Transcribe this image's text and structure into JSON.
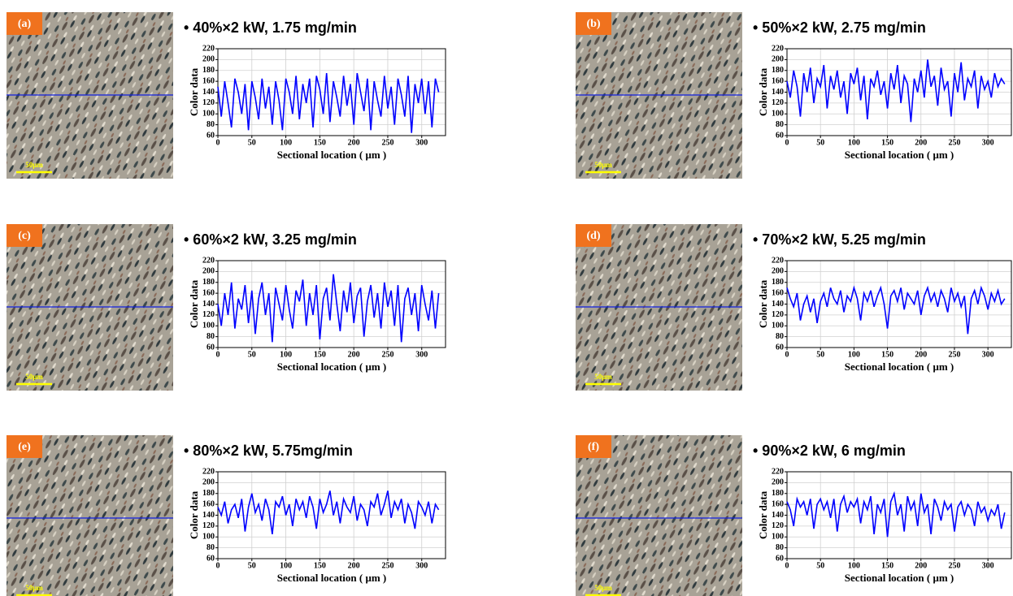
{
  "chart_data": [
    {
      "type": "line",
      "panel_label": "(a)",
      "scale_label": "50μm",
      "title": "• 40%×2 kW, 1.75 mg/min",
      "xlabel": "Sectional location ( μm )",
      "ylabel": "Color data",
      "color": "#0000ff",
      "grid": true,
      "xlim": [
        0,
        335
      ],
      "ylim": [
        60,
        220
      ],
      "xticks": [
        0,
        50,
        100,
        150,
        200,
        250,
        300
      ],
      "yticks": [
        60,
        80,
        100,
        120,
        140,
        160,
        180,
        200,
        220
      ],
      "x": [
        0,
        5,
        10,
        15,
        20,
        25,
        30,
        35,
        40,
        45,
        50,
        55,
        60,
        65,
        70,
        75,
        80,
        85,
        90,
        95,
        100,
        105,
        110,
        115,
        120,
        125,
        130,
        135,
        140,
        145,
        150,
        155,
        160,
        165,
        170,
        175,
        180,
        185,
        190,
        195,
        200,
        205,
        210,
        215,
        220,
        225,
        230,
        235,
        240,
        245,
        250,
        255,
        260,
        265,
        270,
        275,
        280,
        285,
        290,
        295,
        300,
        305,
        310,
        315,
        320,
        325
      ],
      "values": [
        150,
        95,
        160,
        120,
        75,
        165,
        140,
        100,
        155,
        70,
        160,
        130,
        90,
        165,
        110,
        150,
        80,
        160,
        125,
        70,
        165,
        140,
        100,
        170,
        90,
        155,
        120,
        165,
        75,
        170,
        145,
        100,
        175,
        85,
        160,
        130,
        95,
        170,
        115,
        155,
        80,
        175,
        140,
        105,
        165,
        70,
        160,
        125,
        95,
        170,
        110,
        150,
        80,
        165,
        135,
        95,
        170,
        65,
        155,
        120,
        165,
        100,
        160,
        75,
        165,
        140
      ]
    },
    {
      "type": "line",
      "panel_label": "(b)",
      "scale_label": "50μm",
      "title": "• 50%×2 kW, 2.75 mg/min",
      "xlabel": "Sectional location ( μm )",
      "ylabel": "Color data",
      "color": "#0000ff",
      "grid": true,
      "xlim": [
        0,
        335
      ],
      "ylim": [
        60,
        220
      ],
      "xticks": [
        0,
        50,
        100,
        150,
        200,
        250,
        300
      ],
      "yticks": [
        60,
        80,
        100,
        120,
        140,
        160,
        180,
        200,
        220
      ],
      "x": [
        0,
        5,
        10,
        15,
        20,
        25,
        30,
        35,
        40,
        45,
        50,
        55,
        60,
        65,
        70,
        75,
        80,
        85,
        90,
        95,
        100,
        105,
        110,
        115,
        120,
        125,
        130,
        135,
        140,
        145,
        150,
        155,
        160,
        165,
        170,
        175,
        180,
        185,
        190,
        195,
        200,
        205,
        210,
        215,
        220,
        225,
        230,
        235,
        240,
        245,
        250,
        255,
        260,
        265,
        270,
        275,
        280,
        285,
        290,
        295,
        300,
        305,
        310,
        315,
        320,
        325
      ],
      "values": [
        160,
        130,
        180,
        150,
        95,
        175,
        140,
        185,
        120,
        165,
        150,
        190,
        110,
        170,
        145,
        180,
        130,
        160,
        100,
        175,
        155,
        185,
        125,
        170,
        90,
        165,
        150,
        180,
        135,
        160,
        110,
        175,
        145,
        190,
        120,
        170,
        155,
        85,
        165,
        140,
        180,
        130,
        200,
        150,
        170,
        115,
        185,
        145,
        160,
        95,
        175,
        140,
        195,
        125,
        165,
        150,
        180,
        110,
        170,
        145,
        160,
        130,
        175,
        150,
        165,
        155
      ]
    },
    {
      "type": "line",
      "panel_label": "(c)",
      "scale_label": "50μm",
      "title": "• 60%×2 kW, 3.25 mg/min",
      "xlabel": "Sectional location ( μm )",
      "ylabel": "Color data",
      "color": "#0000ff",
      "grid": true,
      "xlim": [
        0,
        335
      ],
      "ylim": [
        60,
        220
      ],
      "xticks": [
        0,
        50,
        100,
        150,
        200,
        250,
        300
      ],
      "yticks": [
        60,
        80,
        100,
        120,
        140,
        160,
        180,
        200,
        220
      ],
      "x": [
        0,
        5,
        10,
        15,
        20,
        25,
        30,
        35,
        40,
        45,
        50,
        55,
        60,
        65,
        70,
        75,
        80,
        85,
        90,
        95,
        100,
        105,
        110,
        115,
        120,
        125,
        130,
        135,
        140,
        145,
        150,
        155,
        160,
        165,
        170,
        175,
        180,
        185,
        190,
        195,
        200,
        205,
        210,
        215,
        220,
        225,
        230,
        235,
        240,
        245,
        250,
        255,
        260,
        265,
        270,
        275,
        280,
        285,
        290,
        295,
        300,
        305,
        310,
        315,
        320,
        325
      ],
      "values": [
        140,
        100,
        160,
        120,
        180,
        95,
        150,
        130,
        175,
        105,
        165,
        85,
        150,
        180,
        120,
        160,
        70,
        170,
        140,
        110,
        175,
        130,
        95,
        165,
        145,
        185,
        100,
        160,
        120,
        175,
        75,
        150,
        170,
        110,
        195,
        140,
        90,
        165,
        125,
        180,
        105,
        155,
        170,
        80,
        145,
        175,
        115,
        160,
        95,
        180,
        135,
        165,
        100,
        175,
        70,
        150,
        170,
        120,
        160,
        90,
        175,
        140,
        110,
        165,
        95,
        160
      ]
    },
    {
      "type": "line",
      "panel_label": "(d)",
      "scale_label": "50μm",
      "title": "• 70%×2 kW, 5.25 mg/min",
      "xlabel": "Sectional location ( μm )",
      "ylabel": "Color data",
      "color": "#0000ff",
      "grid": true,
      "xlim": [
        0,
        335
      ],
      "ylim": [
        60,
        220
      ],
      "xticks": [
        0,
        50,
        100,
        150,
        200,
        250,
        300
      ],
      "yticks": [
        60,
        80,
        100,
        120,
        140,
        160,
        180,
        200,
        220
      ],
      "x": [
        0,
        5,
        10,
        15,
        20,
        25,
        30,
        35,
        40,
        45,
        50,
        55,
        60,
        65,
        70,
        75,
        80,
        85,
        90,
        95,
        100,
        105,
        110,
        115,
        120,
        125,
        130,
        135,
        140,
        145,
        150,
        155,
        160,
        165,
        170,
        175,
        180,
        185,
        190,
        195,
        200,
        205,
        210,
        215,
        220,
        225,
        230,
        235,
        240,
        245,
        250,
        255,
        260,
        265,
        270,
        275,
        280,
        285,
        290,
        295,
        300,
        305,
        310,
        315,
        320,
        325
      ],
      "values": [
        170,
        150,
        135,
        160,
        110,
        140,
        155,
        125,
        150,
        105,
        145,
        160,
        135,
        170,
        150,
        140,
        165,
        125,
        155,
        145,
        170,
        150,
        110,
        160,
        145,
        165,
        135,
        155,
        170,
        140,
        95,
        155,
        165,
        145,
        170,
        130,
        160,
        150,
        140,
        165,
        120,
        155,
        170,
        145,
        160,
        135,
        165,
        150,
        125,
        170,
        145,
        160,
        135,
        155,
        85,
        150,
        165,
        140,
        170,
        155,
        130,
        160,
        145,
        165,
        140,
        150
      ]
    },
    {
      "type": "line",
      "panel_label": "(e)",
      "scale_label": "50μm",
      "title": "• 80%×2 kW, 5.75mg/min",
      "xlabel": "Sectional location ( μm )",
      "ylabel": "Color data",
      "color": "#0000ff",
      "grid": true,
      "xlim": [
        0,
        335
      ],
      "ylim": [
        60,
        220
      ],
      "xticks": [
        0,
        50,
        100,
        150,
        200,
        250,
        300
      ],
      "yticks": [
        60,
        80,
        100,
        120,
        140,
        160,
        180,
        200,
        220
      ],
      "x": [
        0,
        5,
        10,
        15,
        20,
        25,
        30,
        35,
        40,
        45,
        50,
        55,
        60,
        65,
        70,
        75,
        80,
        85,
        90,
        95,
        100,
        105,
        110,
        115,
        120,
        125,
        130,
        135,
        140,
        145,
        150,
        155,
        160,
        165,
        170,
        175,
        180,
        185,
        190,
        195,
        200,
        205,
        210,
        215,
        220,
        225,
        230,
        235,
        240,
        245,
        250,
        255,
        260,
        265,
        270,
        275,
        280,
        285,
        290,
        295,
        300,
        305,
        310,
        315,
        320,
        325
      ],
      "values": [
        155,
        140,
        165,
        125,
        150,
        160,
        135,
        170,
        110,
        155,
        180,
        145,
        160,
        130,
        170,
        150,
        105,
        165,
        155,
        175,
        140,
        160,
        120,
        170,
        150,
        165,
        135,
        175,
        155,
        115,
        170,
        145,
        160,
        185,
        140,
        165,
        125,
        170,
        155,
        145,
        175,
        130,
        160,
        150,
        120,
        165,
        155,
        180,
        140,
        160,
        185,
        135,
        165,
        150,
        170,
        125,
        160,
        145,
        115,
        165,
        155,
        140,
        165,
        125,
        160,
        150
      ]
    },
    {
      "type": "line",
      "panel_label": "(f)",
      "scale_label": "50μm",
      "title": "• 90%×2 kW, 6 mg/min",
      "xlabel": "Sectional location ( μm )",
      "ylabel": "Color data",
      "color": "#0000ff",
      "grid": true,
      "xlim": [
        0,
        335
      ],
      "ylim": [
        60,
        220
      ],
      "xticks": [
        0,
        50,
        100,
        150,
        200,
        250,
        300
      ],
      "yticks": [
        60,
        80,
        100,
        120,
        140,
        160,
        180,
        200,
        220
      ],
      "x": [
        0,
        5,
        10,
        15,
        20,
        25,
        30,
        35,
        40,
        45,
        50,
        55,
        60,
        65,
        70,
        75,
        80,
        85,
        90,
        95,
        100,
        105,
        110,
        115,
        120,
        125,
        130,
        135,
        140,
        145,
        150,
        155,
        160,
        165,
        170,
        175,
        180,
        185,
        190,
        195,
        200,
        205,
        210,
        215,
        220,
        225,
        230,
        235,
        240,
        245,
        250,
        255,
        260,
        265,
        270,
        275,
        280,
        285,
        290,
        295,
        300,
        305,
        310,
        315,
        320,
        325
      ],
      "values": [
        165,
        150,
        120,
        170,
        155,
        165,
        140,
        170,
        115,
        160,
        170,
        150,
        165,
        135,
        170,
        110,
        160,
        175,
        145,
        165,
        155,
        170,
        125,
        165,
        150,
        175,
        105,
        160,
        145,
        170,
        100,
        165,
        180,
        140,
        160,
        110,
        175,
        150,
        165,
        120,
        180,
        145,
        160,
        105,
        170,
        155,
        130,
        165,
        150,
        160,
        110,
        155,
        165,
        140,
        160,
        150,
        120,
        165,
        145,
        155,
        130,
        150,
        140,
        160,
        115,
        145
      ]
    }
  ]
}
